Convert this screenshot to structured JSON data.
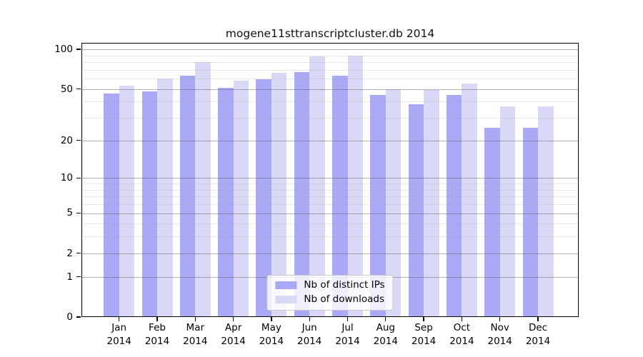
{
  "chart_data": {
    "type": "bar",
    "title": "mogene11sttranscriptcluster.db 2014",
    "categories": [
      "Jan",
      "Feb",
      "Mar",
      "Apr",
      "May",
      "Jun",
      "Jul",
      "Aug",
      "Sep",
      "Oct",
      "Nov",
      "Dec"
    ],
    "year_label": "2014",
    "series": [
      {
        "name": "Nb of distinct IPs",
        "color": "#a9a9f5",
        "values": [
          46,
          48,
          63,
          51,
          59,
          67,
          63,
          45,
          38,
          45,
          25,
          25
        ]
      },
      {
        "name": "Nb of downloads",
        "color": "#d9d9f7",
        "values": [
          53,
          60,
          80,
          58,
          66,
          88,
          90,
          50,
          49,
          55,
          37,
          37
        ]
      }
    ],
    "y_axis": {
      "scale": "log1p",
      "tick_labels": [
        "0",
        "1",
        "2",
        "5",
        "10",
        "20",
        "50",
        "100"
      ],
      "tick_values": [
        0,
        1,
        2,
        5,
        10,
        20,
        50,
        100
      ],
      "minor_tick_values": [
        3,
        4,
        6,
        7,
        8,
        9,
        30,
        40,
        60,
        70,
        80,
        90
      ],
      "axis_max": 112
    },
    "legend": {
      "position": "bottom-center"
    },
    "colors": {
      "bar_distinct_ips": "#a9a9f5",
      "bar_downloads": "#d9d9f7",
      "major_grid_rgba": "rgba(85,85,85,0.45)",
      "minor_grid_rgba": "rgba(150,150,150,0.22)",
      "spine": "#000000",
      "background": "#ffffff"
    }
  }
}
